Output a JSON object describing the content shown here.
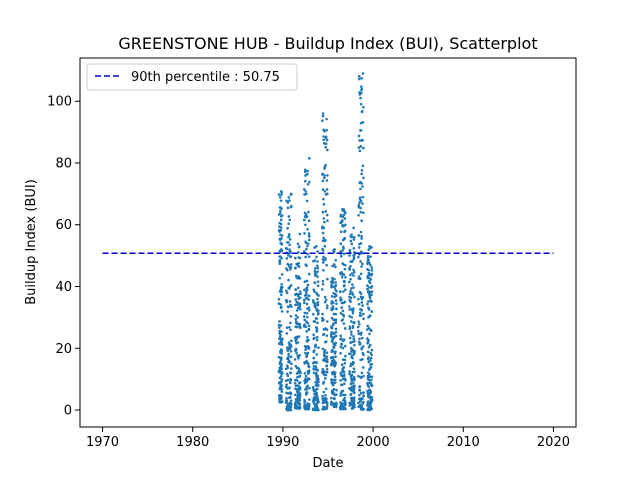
{
  "chart_data": {
    "type": "scatter",
    "title": "GREENSTONE HUB - Buildup Index (BUI), Scatterplot",
    "xlabel": "Date",
    "ylabel": "Buildup Index (BUI)",
    "xlim": [
      1967.5,
      2022.5
    ],
    "ylim": [
      -5.5,
      114
    ],
    "x_ticks": [
      1970,
      1980,
      1990,
      2000,
      2010,
      2020
    ],
    "x_tick_labels": [
      "1970",
      "1980",
      "1990",
      "2000",
      "2010",
      "2020"
    ],
    "y_ticks": [
      0,
      20,
      40,
      60,
      80,
      100
    ],
    "y_tick_labels": [
      "0",
      "20",
      "40",
      "60",
      "80",
      "100"
    ],
    "grid": false,
    "legend": {
      "placement": "top-left",
      "entries": [
        {
          "label": "90th percentile : 50.75",
          "style": "dashed-line",
          "color": "#0000cc"
        }
      ]
    },
    "reference_line": {
      "y": 50.75,
      "x_range": [
        1970,
        2020
      ],
      "color": "#0000cc",
      "style": "dashed"
    },
    "series": [
      {
        "marker_color": "#1f77b4",
        "seasons": [
          {
            "start": 1989.55,
            "end": 1989.95,
            "min": 2.5,
            "max": 70.8
          },
          {
            "start": 1990.35,
            "end": 1990.95,
            "min": 0.0,
            "max": 70.0
          },
          {
            "start": 1991.35,
            "end": 1991.95,
            "min": 0.5,
            "max": 57.0
          },
          {
            "start": 1992.35,
            "end": 1992.95,
            "min": 0.3,
            "max": 81.5
          },
          {
            "start": 1993.35,
            "end": 1993.95,
            "min": 0.0,
            "max": 53.0
          },
          {
            "start": 1994.35,
            "end": 1994.95,
            "min": 0.3,
            "max": 96.0
          },
          {
            "start": 1995.35,
            "end": 1995.95,
            "min": 1.0,
            "max": 52.0
          },
          {
            "start": 1996.35,
            "end": 1996.95,
            "min": 0.3,
            "max": 65.0
          },
          {
            "start": 1997.35,
            "end": 1997.95,
            "min": 0.5,
            "max": 59.0
          },
          {
            "start": 1998.35,
            "end": 1998.95,
            "min": 0.2,
            "max": 109.0
          },
          {
            "start": 1999.35,
            "end": 1999.9,
            "min": 0.0,
            "max": 53.0
          }
        ]
      }
    ]
  }
}
